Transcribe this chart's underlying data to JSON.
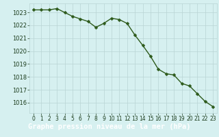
{
  "x": [
    0,
    1,
    2,
    3,
    4,
    5,
    6,
    7,
    8,
    9,
    10,
    11,
    12,
    13,
    14,
    15,
    16,
    17,
    18,
    19,
    20,
    21,
    22,
    23
  ],
  "y": [
    1023.2,
    1023.2,
    1023.2,
    1023.3,
    1023.0,
    1022.7,
    1022.5,
    1022.3,
    1021.85,
    1022.15,
    1022.55,
    1022.45,
    1022.15,
    1021.25,
    1020.45,
    1019.6,
    1018.6,
    1018.25,
    1018.15,
    1017.5,
    1017.3,
    1016.7,
    1016.1,
    1015.7
  ],
  "line_color": "#2d5a1b",
  "marker": "D",
  "marker_size": 2.5,
  "bg_color": "#d6f0f0",
  "grid_color": "#b8d4d4",
  "title": "Graphe pression niveau de la mer (hPa)",
  "title_bg": "#4a9a4a",
  "ylim_min": 1015.2,
  "ylim_max": 1023.7,
  "xtick_labels": [
    "0",
    "1",
    "2",
    "3",
    "4",
    "5",
    "6",
    "7",
    "8",
    "9",
    "10",
    "11",
    "12",
    "13",
    "14",
    "15",
    "16",
    "17",
    "18",
    "19",
    "20",
    "21",
    "22",
    "23"
  ],
  "tick_color": "#1a3a1a",
  "tick_fontsize": 6,
  "title_fontsize": 7.5,
  "line_width": 1.0,
  "yticks": [
    1016,
    1017,
    1018,
    1019,
    1020,
    1021,
    1022,
    1023
  ]
}
